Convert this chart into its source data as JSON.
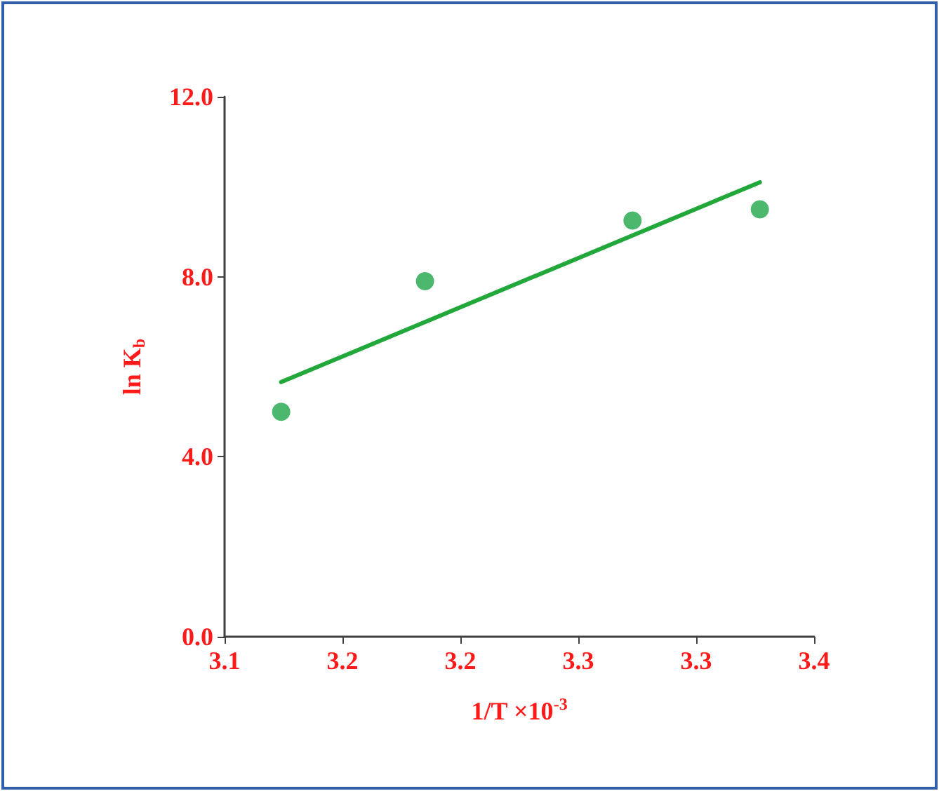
{
  "chart_data": {
    "type": "scatter",
    "xlabel": "1/T ×10$^{-3}$",
    "ylabel": "ln K$_{b}$",
    "xlim": [
      3.1,
      3.35
    ],
    "ylim": [
      0,
      12
    ],
    "xticks": [
      {
        "value": 3.1,
        "label": "3.1"
      },
      {
        "value": 3.15,
        "label": "3.2"
      },
      {
        "value": 3.2,
        "label": "3.2"
      },
      {
        "value": 3.25,
        "label": "3.3"
      },
      {
        "value": 3.3,
        "label": "3.3"
      },
      {
        "value": 3.35,
        "label": "3.4"
      }
    ],
    "yticks": [
      {
        "value": 0,
        "label": "0.0"
      },
      {
        "value": 4,
        "label": "4.0"
      },
      {
        "value": 8,
        "label": "8.0"
      },
      {
        "value": 12,
        "label": "12.0"
      }
    ],
    "x": [
      3.124,
      3.185,
      3.273,
      3.327
    ],
    "series": [
      {
        "color": "#1ea64a",
        "values": [
          5.0,
          7.9,
          9.25,
          9.5
        ],
        "marker": "circle"
      },
      {
        "type": "line",
        "color": "#22a83a",
        "x": [
          3.124,
          3.327
        ],
        "values": [
          5.66,
          10.1
        ],
        "marker": "none",
        "line_style": "solid"
      }
    ],
    "grid": false
  }
}
